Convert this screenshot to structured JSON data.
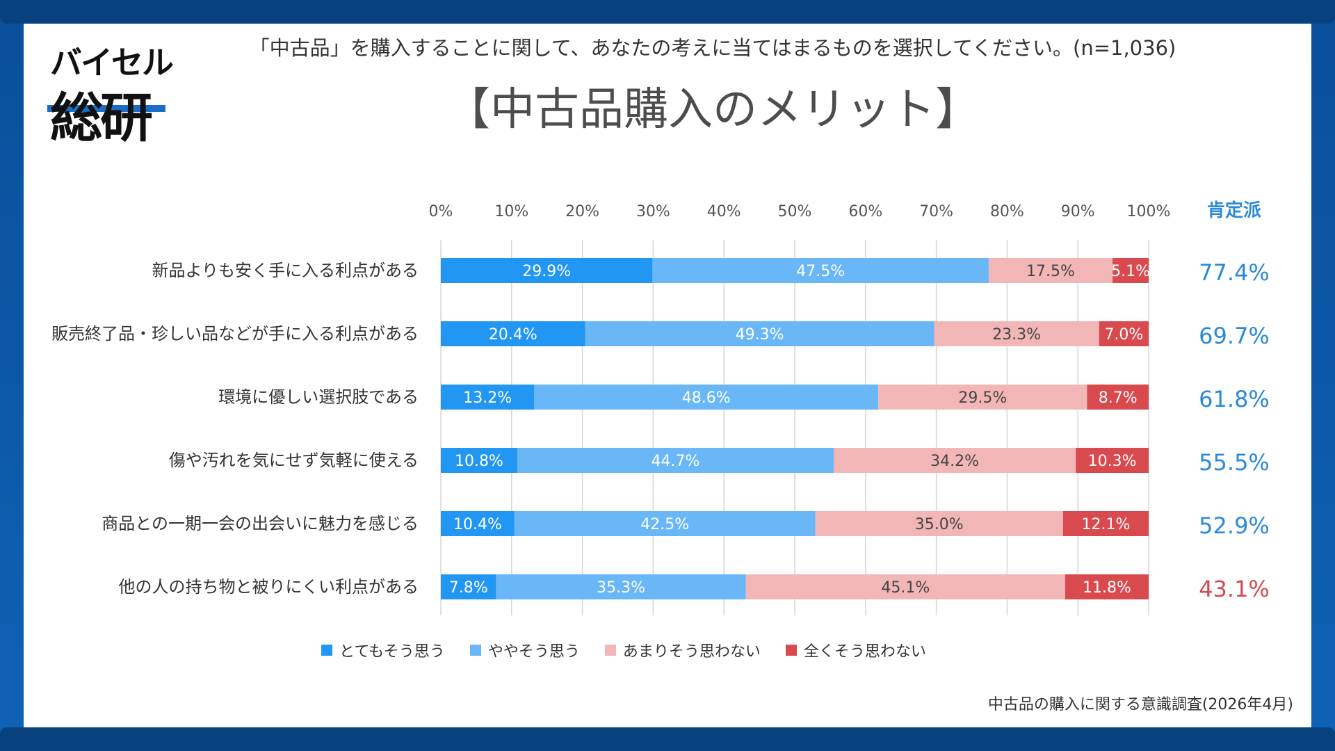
{
  "logo": {
    "line1": "バイセル",
    "line2": "総研"
  },
  "header": {
    "question": "「中古品」を購入することに関して、あなたの考えに当てはまるものを選択してください。(n=1,036)",
    "title": "【中古品購入のメリット】"
  },
  "source": "中古品の購入に関する意識調査(2026年4月)",
  "colors": {
    "strongly_agree": "#2196f3",
    "somewhat_agree": "#6ab7f8",
    "somewhat_disagree": "#f2b6b6",
    "strongly_disagree": "#d94a4f",
    "positive_blue": "#2a8ad8",
    "positive_red": "#d24a4f"
  },
  "chart_data": {
    "type": "bar",
    "orientation": "horizontal",
    "stacked": true,
    "x_ticks": [
      "0%",
      "10%",
      "20%",
      "30%",
      "40%",
      "50%",
      "60%",
      "70%",
      "80%",
      "90%",
      "100%"
    ],
    "xlim": [
      0,
      100
    ],
    "grid": true,
    "legend_position": "bottom",
    "categories": [
      "新品よりも安く手に入る利点がある",
      "販売終了品・珍しい品などが手に入る利点がある",
      "環境に優しい選択肢である",
      "傷や汚れを気にせず気軽に使える",
      "商品との一期一会の出会いに魅力を感じる",
      "他の人の持ち物と被りにくい利点がある"
    ],
    "series": [
      {
        "name": "とてもそう思う",
        "values": [
          29.9,
          20.4,
          13.2,
          10.8,
          10.4,
          7.8
        ],
        "labels": [
          "29.9%",
          "20.4%",
          "13.2%",
          "10.8%",
          "10.4%",
          "7.8%"
        ]
      },
      {
        "name": "ややそう思う",
        "values": [
          47.5,
          49.3,
          48.6,
          44.7,
          42.5,
          35.3
        ],
        "labels": [
          "47.5%",
          "49.3%",
          "48.6%",
          "44.7%",
          "42.5%",
          "35.3%"
        ]
      },
      {
        "name": "あまりそう思わない",
        "values": [
          17.5,
          23.3,
          29.5,
          34.2,
          35.0,
          45.1
        ],
        "labels": [
          "17.5%",
          "23.3%",
          "29.5%",
          "34.2%",
          "35.0%",
          "45.1%"
        ]
      },
      {
        "name": "全くそう思わない",
        "values": [
          5.1,
          7.0,
          8.7,
          10.3,
          12.1,
          11.8
        ],
        "labels": [
          "5.1%",
          "7.0%",
          "8.7%",
          "10.3%",
          "12.1%",
          "11.8%"
        ]
      }
    ],
    "positive": {
      "header": "肯定派",
      "values": [
        77.4,
        69.7,
        61.8,
        55.5,
        52.9,
        43.1
      ],
      "labels": [
        "77.4%",
        "69.7%",
        "61.8%",
        "55.5%",
        "52.9%",
        "43.1%"
      ]
    }
  }
}
